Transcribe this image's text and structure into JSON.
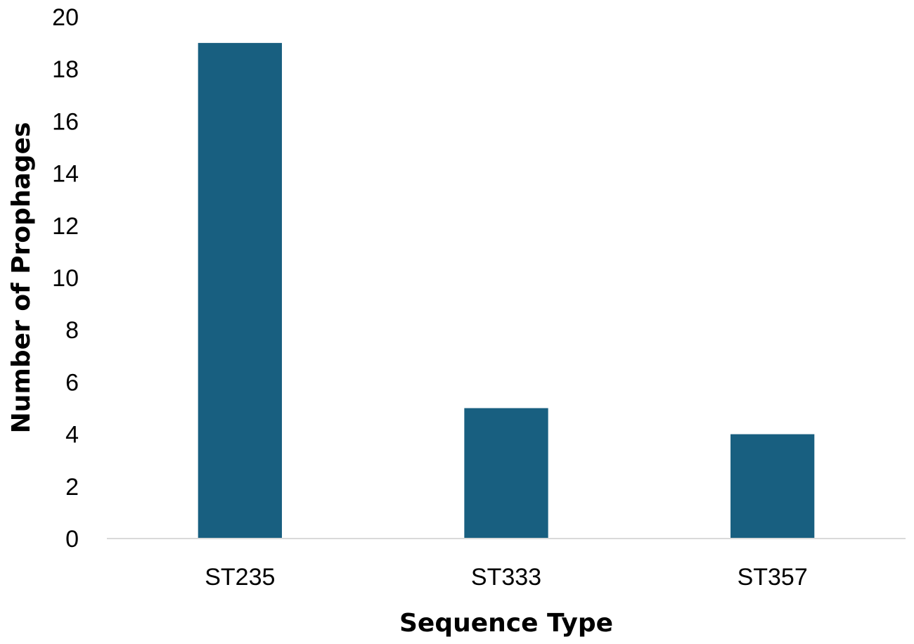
{
  "chart_data": {
    "type": "bar",
    "title": "",
    "xlabel": "Sequence Type",
    "ylabel": "Number of Prophages",
    "categories": [
      "ST235",
      "ST333",
      "ST357"
    ],
    "series": [
      {
        "values": [
          19,
          5,
          4
        ]
      }
    ],
    "ylim": [
      0,
      20
    ],
    "yticks": [
      0,
      2,
      4,
      6,
      8,
      10,
      12,
      14,
      16,
      18,
      20
    ],
    "grid": false,
    "legend": "none",
    "colors": {
      "bar": "#185f80",
      "axis_line": "#d9d9d9",
      "text": "#000000"
    }
  }
}
